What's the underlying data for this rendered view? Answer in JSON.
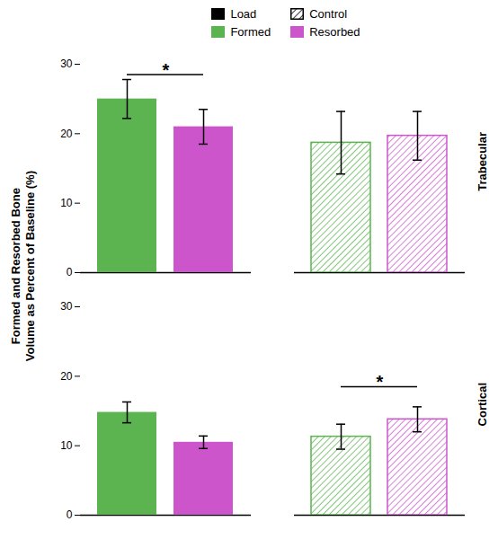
{
  "chart_data": {
    "type": "bar",
    "ylabel": "Formed and Resorbed Bone\nVolume as Percent of Baseline (%)",
    "categories": [
      "Load",
      "Control"
    ],
    "tick_labels": "y",
    "ylim": [
      0,
      30
    ],
    "yticks": [
      0,
      10,
      20,
      30
    ],
    "legend": "top",
    "panels": [
      {
        "title": "Trabecular",
        "series": [
          {
            "name": "Formed",
            "color": "#5bb450",
            "values": [
              25.0,
              18.7
            ],
            "errors": [
              2.8,
              4.5
            ]
          },
          {
            "name": "Resorbed",
            "color": "#cc55cc",
            "values": [
              21.0,
              19.7
            ],
            "errors": [
              2.5,
              3.5
            ]
          }
        ],
        "annotations": [
          {
            "text": "*",
            "category": "Load",
            "y": 28.5
          }
        ]
      },
      {
        "title": "Cortical",
        "series": [
          {
            "name": "Formed",
            "color": "#5bb450",
            "values": [
              14.8,
              11.3
            ],
            "errors": [
              1.5,
              1.8
            ]
          },
          {
            "name": "Resorbed",
            "color": "#cc55cc",
            "values": [
              10.5,
              13.8
            ],
            "errors": [
              0.9,
              1.8
            ]
          }
        ],
        "annotations": [
          {
            "text": "*",
            "category": "Control",
            "y": 18.5
          }
        ]
      }
    ]
  }
}
